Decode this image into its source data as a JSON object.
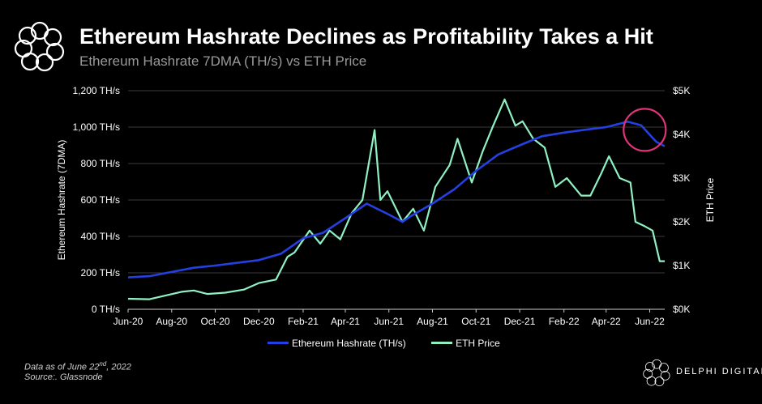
{
  "header": {
    "title": "Ethereum Hashrate Declines as Profitability Takes a Hit",
    "subtitle": "Ethereum Hashrate 7DMA (TH/s) vs ETH Price"
  },
  "footer": {
    "note_prefix": "Data as of June 22",
    "note_sup": "nd",
    "note_suffix": ", 2022",
    "source": "Source:. Glassnode",
    "brand": "DELPHI DIGITAL"
  },
  "colors": {
    "hashrate": "#2440e0",
    "price": "#8ff0c2",
    "highlight": "#e0337a",
    "axis_text": "#ffffff"
  },
  "chart_data": {
    "type": "line",
    "title": "Ethereum Hashrate Declines as Profitability Takes a Hit",
    "subtitle": "Ethereum Hashrate 7DMA (TH/s) vs ETH Price",
    "ylabel": "Ethereum Hashrate (7DMA)",
    "y2label": "ETH Price",
    "ylim": [
      0,
      1200
    ],
    "y2lim": [
      0,
      5000
    ],
    "xlim": [
      "2020-06-01",
      "2022-06-22"
    ],
    "y_ticks": [
      "0 TH/s",
      "200 TH/s",
      "400 TH/s",
      "600 TH/s",
      "800 TH/s",
      "1,000 TH/s",
      "1,200 TH/s"
    ],
    "y_tick_values": [
      0,
      200,
      400,
      600,
      800,
      1000,
      1200
    ],
    "y2_ticks": [
      "$0K",
      "$1K",
      "$2K",
      "$3K",
      "$4K",
      "$5K"
    ],
    "y2_tick_values": [
      0,
      1000,
      2000,
      3000,
      4000,
      5000
    ],
    "x_ticks": [
      "Jun-20",
      "Aug-20",
      "Oct-20",
      "Dec-20",
      "Feb-21",
      "Apr-21",
      "Jun-21",
      "Aug-21",
      "Oct-21",
      "Dec-21",
      "Feb-22",
      "Apr-22",
      "Jun-22"
    ],
    "x_tick_dates": [
      "2020-06-01",
      "2020-08-01",
      "2020-10-01",
      "2020-12-01",
      "2021-02-01",
      "2021-04-01",
      "2021-06-01",
      "2021-08-01",
      "2021-10-01",
      "2021-12-01",
      "2022-02-01",
      "2022-04-01",
      "2022-06-01"
    ],
    "grid": "horizontal",
    "legend_position": "bottom",
    "series": [
      {
        "name": "Ethereum Hashrate (TH/s)",
        "axis": "left",
        "points": [
          [
            "2020-06-01",
            175
          ],
          [
            "2020-07-01",
            182
          ],
          [
            "2020-08-01",
            205
          ],
          [
            "2020-09-01",
            228
          ],
          [
            "2020-10-01",
            240
          ],
          [
            "2020-11-01",
            255
          ],
          [
            "2020-12-01",
            270
          ],
          [
            "2021-01-01",
            305
          ],
          [
            "2021-02-01",
            390
          ],
          [
            "2021-03-01",
            420
          ],
          [
            "2021-04-01",
            500
          ],
          [
            "2021-05-01",
            580
          ],
          [
            "2021-06-01",
            520
          ],
          [
            "2021-06-20",
            480
          ],
          [
            "2021-07-01",
            510
          ],
          [
            "2021-08-01",
            580
          ],
          [
            "2021-09-01",
            660
          ],
          [
            "2021-10-01",
            760
          ],
          [
            "2021-11-01",
            850
          ],
          [
            "2021-12-01",
            900
          ],
          [
            "2022-01-01",
            950
          ],
          [
            "2022-02-01",
            970
          ],
          [
            "2022-03-01",
            985
          ],
          [
            "2022-04-01",
            1000
          ],
          [
            "2022-05-01",
            1030
          ],
          [
            "2022-05-20",
            1010
          ],
          [
            "2022-06-10",
            920
          ],
          [
            "2022-06-22",
            895
          ]
        ]
      },
      {
        "name": "ETH Price",
        "axis": "right",
        "points": [
          [
            "2020-06-01",
            240
          ],
          [
            "2020-07-01",
            230
          ],
          [
            "2020-07-25",
            320
          ],
          [
            "2020-08-15",
            400
          ],
          [
            "2020-09-01",
            430
          ],
          [
            "2020-09-20",
            350
          ],
          [
            "2020-10-15",
            380
          ],
          [
            "2020-11-10",
            450
          ],
          [
            "2020-12-01",
            600
          ],
          [
            "2020-12-25",
            680
          ],
          [
            "2021-01-10",
            1200
          ],
          [
            "2021-01-20",
            1300
          ],
          [
            "2021-02-10",
            1800
          ],
          [
            "2021-02-25",
            1500
          ],
          [
            "2021-03-10",
            1800
          ],
          [
            "2021-03-25",
            1600
          ],
          [
            "2021-04-10",
            2200
          ],
          [
            "2021-04-25",
            2500
          ],
          [
            "2021-05-12",
            4100
          ],
          [
            "2021-05-20",
            2500
          ],
          [
            "2021-05-30",
            2700
          ],
          [
            "2021-06-20",
            2000
          ],
          [
            "2021-07-05",
            2300
          ],
          [
            "2021-07-20",
            1800
          ],
          [
            "2021-08-05",
            2800
          ],
          [
            "2021-08-25",
            3300
          ],
          [
            "2021-09-05",
            3900
          ],
          [
            "2021-09-25",
            2900
          ],
          [
            "2021-10-10",
            3600
          ],
          [
            "2021-10-25",
            4200
          ],
          [
            "2021-11-10",
            4800
          ],
          [
            "2021-11-25",
            4200
          ],
          [
            "2021-12-05",
            4300
          ],
          [
            "2021-12-20",
            3900
          ],
          [
            "2022-01-05",
            3700
          ],
          [
            "2022-01-20",
            2800
          ],
          [
            "2022-02-05",
            3000
          ],
          [
            "2022-02-25",
            2600
          ],
          [
            "2022-03-10",
            2600
          ],
          [
            "2022-03-25",
            3100
          ],
          [
            "2022-04-05",
            3500
          ],
          [
            "2022-04-20",
            3000
          ],
          [
            "2022-05-05",
            2900
          ],
          [
            "2022-05-12",
            2000
          ],
          [
            "2022-05-25",
            1900
          ],
          [
            "2022-06-05",
            1800
          ],
          [
            "2022-06-15",
            1100
          ],
          [
            "2022-06-22",
            1100
          ]
        ]
      }
    ],
    "annotation": {
      "type": "circle",
      "date": "2022-05-25",
      "value": 985,
      "axis": "left",
      "color": "#e0337a"
    }
  }
}
